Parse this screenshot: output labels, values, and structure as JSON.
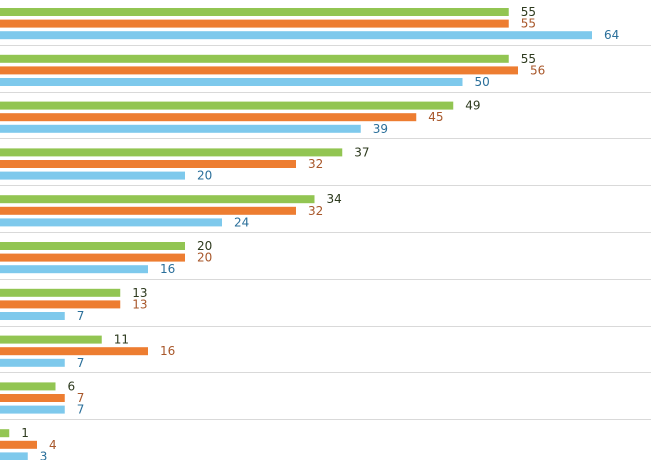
{
  "chart_data": {
    "type": "bar",
    "orientation": "horizontal",
    "xlim": [
      0,
      70
    ],
    "grid": "horizontal separators between groups",
    "legend": "none",
    "series": [
      {
        "color": "#92c552",
        "label_color": "#2d3a1e",
        "values": [
          55,
          55,
          49,
          37,
          34,
          20,
          13,
          11,
          6,
          1
        ]
      },
      {
        "color": "#ed7d31",
        "label_color": "#a8572a",
        "values": [
          55,
          56,
          45,
          32,
          32,
          20,
          13,
          16,
          7,
          4
        ]
      },
      {
        "color": "#7ec9ec",
        "label_color": "#2a6f9a",
        "values": [
          64,
          50,
          39,
          20,
          24,
          16,
          7,
          7,
          7,
          3
        ]
      }
    ]
  }
}
